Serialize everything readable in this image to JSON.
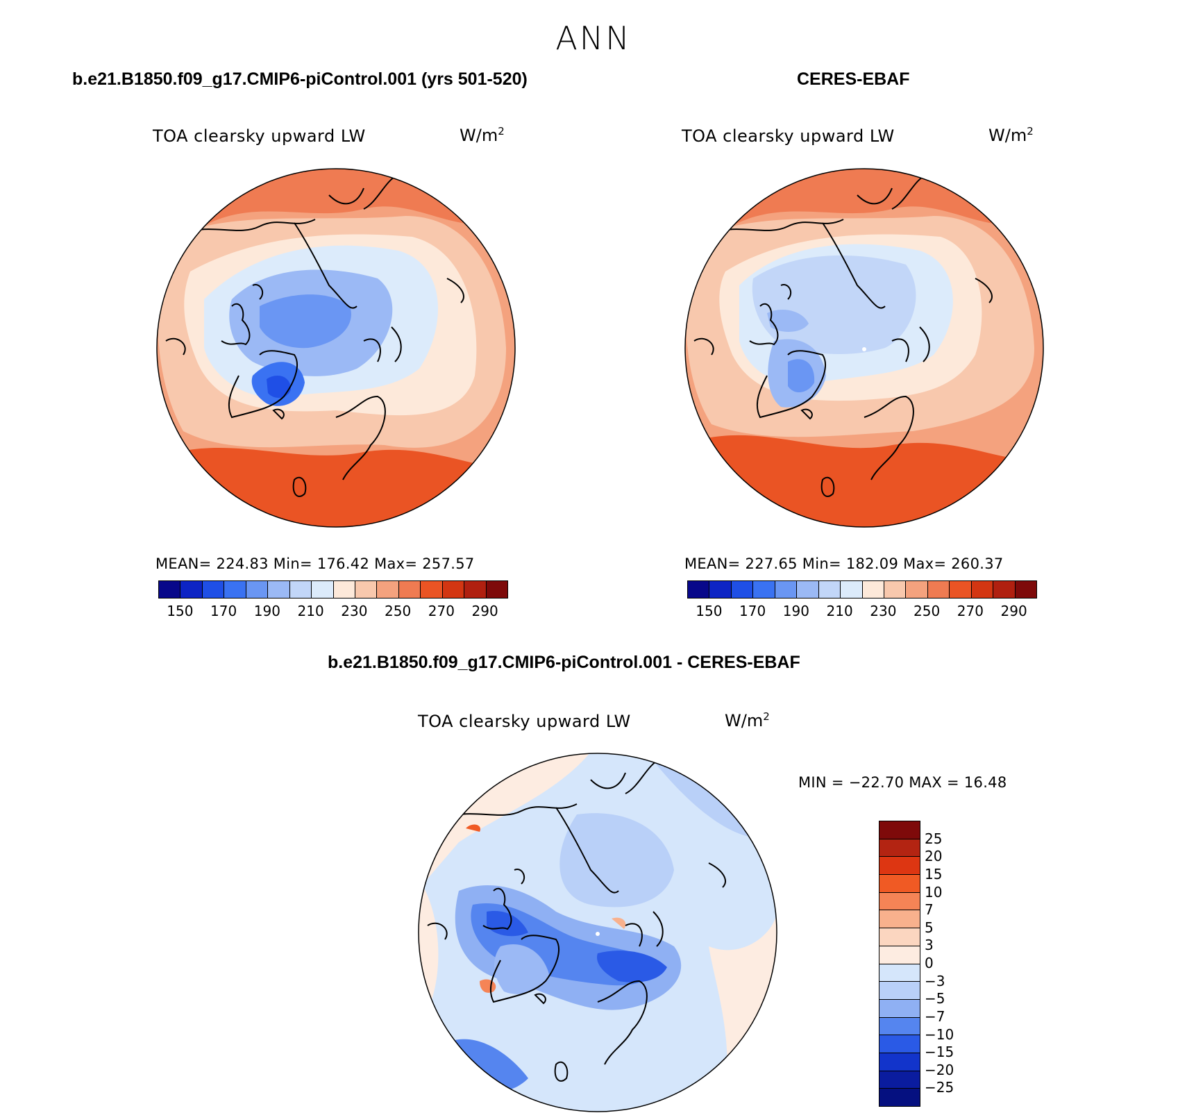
{
  "title": "ANN",
  "panels": [
    {
      "id": "model",
      "case_title": "b.e21.B1850.f09_g17.CMIP6-piControl.001 (yrs 501-520)",
      "variable": "TOA clearsky upward LW",
      "units_base": "W/m",
      "units_exp": "2",
      "stats_text": "MEAN= 224.83   Min= 176.42   Max= 257.57",
      "colorbar_ticks": [
        "150",
        "170",
        "190",
        "210",
        "230",
        "250",
        "270",
        "290"
      ]
    },
    {
      "id": "obs",
      "case_title": "CERES-EBAF",
      "variable": "TOA clearsky upward LW",
      "units_base": "W/m",
      "units_exp": "2",
      "stats_text": "MEAN= 227.65   Min= 182.09   Max= 260.37",
      "colorbar_ticks": [
        "150",
        "170",
        "190",
        "210",
        "230",
        "250",
        "270",
        "290"
      ]
    }
  ],
  "diff_panel": {
    "case_title": "b.e21.B1850.f09_g17.CMIP6-piControl.001 - CERES-EBAF",
    "variable": "TOA clearsky upward LW",
    "units_base": "W/m",
    "units_exp": "2",
    "stats_text": "MIN = −22.70 MAX =   16.48",
    "colorbar_ticks": [
      "25",
      "20",
      "15",
      "10",
      "7",
      "5",
      "3",
      "0",
      "−3",
      "−5",
      "−7",
      "−10",
      "−15",
      "−20",
      "−25"
    ]
  },
  "colors": {
    "abs_palette": [
      "#08088a",
      "#0d24c4",
      "#1f4fe6",
      "#3a72f2",
      "#6a96f3",
      "#9bb9f5",
      "#c2d6f8",
      "#dcebfb",
      "#fde9da",
      "#f8c8ad",
      "#f4a27e",
      "#ef7b52",
      "#ea5424",
      "#d33612",
      "#b02010",
      "#7e0a0a"
    ],
    "diff_palette": [
      "#7e0a0a",
      "#b32412",
      "#dd3612",
      "#f05a24",
      "#f58456",
      "#f8b18d",
      "#fbd6c0",
      "#fdece1",
      "#d5e6fb",
      "#b9d0f8",
      "#8fb0f3",
      "#5585ef",
      "#2a5ae6",
      "#1234cb",
      "#0a1c9f",
      "#051080"
    ]
  }
}
